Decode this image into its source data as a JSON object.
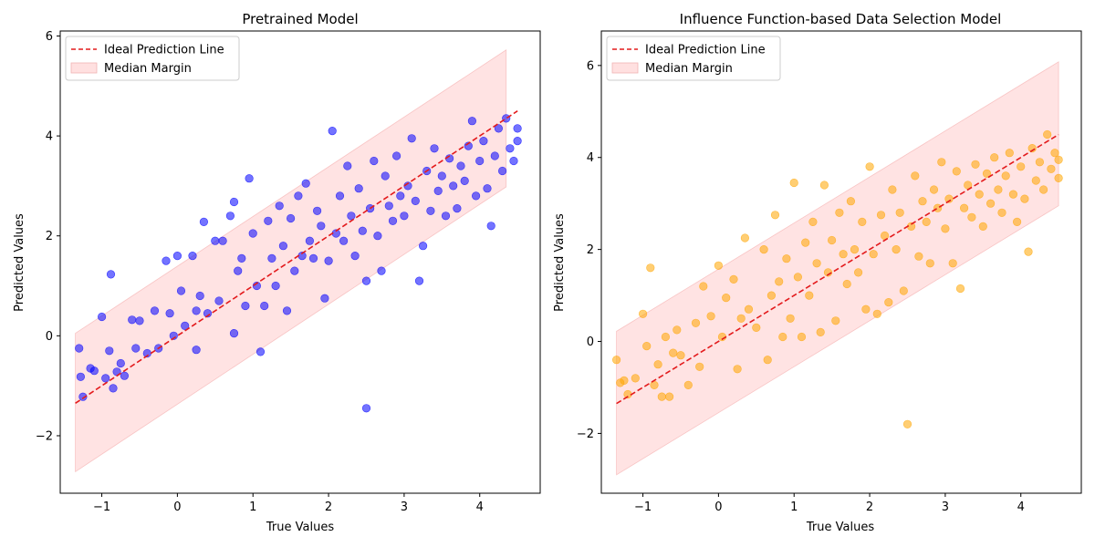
{
  "chart_data": [
    {
      "type": "scatter",
      "title": "Pretrained Model",
      "xlabel": "True Values",
      "ylabel": "Predicted Values",
      "xlim": [
        -1.55,
        4.8
      ],
      "ylim": [
        -3.15,
        6.1
      ],
      "xticks": [
        -1,
        0,
        1,
        2,
        3,
        4
      ],
      "yticks": [
        -2,
        0,
        2,
        4,
        6
      ],
      "tick_labels_x": [
        "−1",
        "0",
        "1",
        "2",
        "3",
        "4"
      ],
      "tick_labels_y": [
        "−2",
        "0",
        "2",
        "4",
        "6"
      ],
      "grid": false,
      "legend_position": "top-left",
      "point_color": "#0000ff",
      "ideal_line": {
        "name": "Ideal Prediction Line",
        "x": [
          -1.35,
          4.5
        ],
        "y": [
          -1.35,
          4.5
        ],
        "color": "#e31a1c",
        "style": "dashed"
      },
      "margin_band": {
        "name": "Median Margin",
        "x": [
          -1.35,
          4.35
        ],
        "lower": [
          -2.72,
          2.98
        ],
        "upper": [
          0.05,
          5.72
        ],
        "color": "#ffcccc"
      },
      "points": [
        [
          -1.3,
          -0.25
        ],
        [
          -1.28,
          -0.82
        ],
        [
          -1.25,
          -1.22
        ],
        [
          -1.15,
          -0.65
        ],
        [
          -1.1,
          -0.7
        ],
        [
          -1.0,
          0.38
        ],
        [
          -0.95,
          -0.85
        ],
        [
          -0.9,
          -0.3
        ],
        [
          -0.88,
          1.23
        ],
        [
          -0.85,
          -1.05
        ],
        [
          -0.8,
          -0.72
        ],
        [
          -0.75,
          -0.55
        ],
        [
          -0.7,
          -0.8
        ],
        [
          -0.6,
          0.32
        ],
        [
          -0.55,
          -0.25
        ],
        [
          -0.5,
          0.3
        ],
        [
          -0.4,
          -0.35
        ],
        [
          -0.3,
          0.5
        ],
        [
          -0.25,
          -0.25
        ],
        [
          -0.15,
          1.5
        ],
        [
          -0.1,
          0.45
        ],
        [
          -0.05,
          0.0
        ],
        [
          0.0,
          1.6
        ],
        [
          0.05,
          0.9
        ],
        [
          0.1,
          0.2
        ],
        [
          0.2,
          1.6
        ],
        [
          0.25,
          -0.28
        ],
        [
          0.25,
          0.5
        ],
        [
          0.3,
          0.8
        ],
        [
          0.35,
          2.28
        ],
        [
          0.4,
          0.45
        ],
        [
          0.5,
          1.9
        ],
        [
          0.55,
          0.7
        ],
        [
          0.6,
          1.9
        ],
        [
          0.7,
          2.4
        ],
        [
          0.75,
          0.05
        ],
        [
          0.75,
          2.68
        ],
        [
          0.8,
          1.3
        ],
        [
          0.85,
          1.55
        ],
        [
          0.9,
          0.6
        ],
        [
          0.95,
          3.15
        ],
        [
          1.0,
          2.05
        ],
        [
          1.05,
          1.0
        ],
        [
          1.1,
          -0.32
        ],
        [
          1.15,
          0.6
        ],
        [
          1.2,
          2.3
        ],
        [
          1.25,
          1.55
        ],
        [
          1.3,
          1.0
        ],
        [
          1.35,
          2.6
        ],
        [
          1.4,
          1.8
        ],
        [
          1.45,
          0.5
        ],
        [
          1.5,
          2.35
        ],
        [
          1.55,
          1.3
        ],
        [
          1.6,
          2.8
        ],
        [
          1.65,
          1.6
        ],
        [
          1.7,
          3.05
        ],
        [
          1.75,
          1.9
        ],
        [
          1.8,
          1.55
        ],
        [
          1.85,
          2.5
        ],
        [
          1.9,
          2.2
        ],
        [
          1.95,
          0.75
        ],
        [
          2.0,
          1.5
        ],
        [
          2.05,
          4.1
        ],
        [
          2.1,
          2.05
        ],
        [
          2.15,
          2.8
        ],
        [
          2.2,
          1.9
        ],
        [
          2.25,
          3.4
        ],
        [
          2.3,
          2.4
        ],
        [
          2.35,
          1.6
        ],
        [
          2.4,
          2.95
        ],
        [
          2.45,
          2.1
        ],
        [
          2.5,
          -1.45
        ],
        [
          2.5,
          1.1
        ],
        [
          2.55,
          2.55
        ],
        [
          2.6,
          3.5
        ],
        [
          2.65,
          2.0
        ],
        [
          2.7,
          1.3
        ],
        [
          2.75,
          3.2
        ],
        [
          2.8,
          2.6
        ],
        [
          2.85,
          2.3
        ],
        [
          2.9,
          3.6
        ],
        [
          2.95,
          2.8
        ],
        [
          3.0,
          2.4
        ],
        [
          3.05,
          3.0
        ],
        [
          3.1,
          3.95
        ],
        [
          3.15,
          2.7
        ],
        [
          3.2,
          1.1
        ],
        [
          3.25,
          1.8
        ],
        [
          3.3,
          3.3
        ],
        [
          3.35,
          2.5
        ],
        [
          3.4,
          3.75
        ],
        [
          3.45,
          2.9
        ],
        [
          3.5,
          3.2
        ],
        [
          3.55,
          2.4
        ],
        [
          3.6,
          3.55
        ],
        [
          3.65,
          3.0
        ],
        [
          3.7,
          2.55
        ],
        [
          3.75,
          3.4
        ],
        [
          3.8,
          3.1
        ],
        [
          3.85,
          3.8
        ],
        [
          3.9,
          4.3
        ],
        [
          3.95,
          2.8
        ],
        [
          4.0,
          3.5
        ],
        [
          4.05,
          3.9
        ],
        [
          4.1,
          2.95
        ],
        [
          4.15,
          2.2
        ],
        [
          4.2,
          3.6
        ],
        [
          4.25,
          4.15
        ],
        [
          4.3,
          3.3
        ],
        [
          4.35,
          4.35
        ],
        [
          4.4,
          3.75
        ],
        [
          4.45,
          3.5
        ],
        [
          4.5,
          3.9
        ],
        [
          4.5,
          4.15
        ]
      ]
    },
    {
      "type": "scatter",
      "title": "Influence Function-based Data Selection Model",
      "xlabel": "True Values",
      "ylabel": "Predicted Values",
      "xlim": [
        -1.55,
        4.8
      ],
      "ylim": [
        -3.3,
        6.75
      ],
      "xticks": [
        -1,
        0,
        1,
        2,
        3,
        4
      ],
      "yticks": [
        -2,
        0,
        2,
        4,
        6
      ],
      "tick_labels_x": [
        "−1",
        "0",
        "1",
        "2",
        "3",
        "4"
      ],
      "tick_labels_y": [
        "−2",
        "0",
        "2",
        "4",
        "6"
      ],
      "grid": false,
      "legend_position": "top-left",
      "point_color": "#ffa500",
      "ideal_line": {
        "name": "Ideal Prediction Line",
        "x": [
          -1.35,
          4.5
        ],
        "y": [
          -1.35,
          4.5
        ],
        "color": "#e31a1c",
        "style": "dashed"
      },
      "margin_band": {
        "name": "Median Margin",
        "x": [
          -1.35,
          4.5
        ],
        "lower": [
          -2.9,
          2.95
        ],
        "upper": [
          0.22,
          6.08
        ],
        "color": "#ffcccc"
      },
      "points": [
        [
          -1.35,
          -0.4
        ],
        [
          -1.3,
          -0.9
        ],
        [
          -1.25,
          -0.85
        ],
        [
          -1.2,
          -1.15
        ],
        [
          -1.1,
          -0.8
        ],
        [
          -1.0,
          0.6
        ],
        [
          -0.95,
          -0.1
        ],
        [
          -0.9,
          1.6
        ],
        [
          -0.85,
          -0.95
        ],
        [
          -0.8,
          -0.5
        ],
        [
          -0.75,
          -1.2
        ],
        [
          -0.7,
          0.1
        ],
        [
          -0.65,
          -1.2
        ],
        [
          -0.6,
          -0.25
        ],
        [
          -0.55,
          0.25
        ],
        [
          -0.5,
          -0.3
        ],
        [
          -0.4,
          -0.95
        ],
        [
          -0.3,
          0.4
        ],
        [
          -0.25,
          -0.55
        ],
        [
          -0.2,
          1.2
        ],
        [
          -0.1,
          0.55
        ],
        [
          0.0,
          1.65
        ],
        [
          0.05,
          0.1
        ],
        [
          0.1,
          0.95
        ],
        [
          0.2,
          1.35
        ],
        [
          0.25,
          -0.6
        ],
        [
          0.3,
          0.5
        ],
        [
          0.35,
          2.25
        ],
        [
          0.4,
          0.7
        ],
        [
          0.5,
          0.3
        ],
        [
          0.6,
          2.0
        ],
        [
          0.65,
          -0.4
        ],
        [
          0.7,
          1.0
        ],
        [
          0.75,
          2.75
        ],
        [
          0.8,
          1.3
        ],
        [
          0.85,
          0.1
        ],
        [
          0.9,
          1.8
        ],
        [
          0.95,
          0.5
        ],
        [
          1.0,
          3.45
        ],
        [
          1.05,
          1.4
        ],
        [
          1.1,
          0.1
        ],
        [
          1.15,
          2.15
        ],
        [
          1.2,
          1.0
        ],
        [
          1.25,
          2.6
        ],
        [
          1.3,
          1.7
        ],
        [
          1.35,
          0.2
        ],
        [
          1.4,
          3.4
        ],
        [
          1.45,
          1.5
        ],
        [
          1.5,
          2.2
        ],
        [
          1.55,
          0.45
        ],
        [
          1.6,
          2.8
        ],
        [
          1.65,
          1.9
        ],
        [
          1.7,
          1.25
        ],
        [
          1.75,
          3.05
        ],
        [
          1.8,
          2.0
        ],
        [
          1.85,
          1.5
        ],
        [
          1.9,
          2.6
        ],
        [
          1.95,
          0.7
        ],
        [
          2.0,
          3.8
        ],
        [
          2.05,
          1.9
        ],
        [
          2.1,
          0.6
        ],
        [
          2.15,
          2.75
        ],
        [
          2.2,
          2.3
        ],
        [
          2.25,
          0.85
        ],
        [
          2.3,
          3.3
        ],
        [
          2.35,
          2.0
        ],
        [
          2.4,
          2.8
        ],
        [
          2.45,
          1.1
        ],
        [
          2.5,
          -1.8
        ],
        [
          2.55,
          2.5
        ],
        [
          2.6,
          3.6
        ],
        [
          2.65,
          1.85
        ],
        [
          2.7,
          3.05
        ],
        [
          2.75,
          2.6
        ],
        [
          2.8,
          1.7
        ],
        [
          2.85,
          3.3
        ],
        [
          2.9,
          2.9
        ],
        [
          2.95,
          3.9
        ],
        [
          3.0,
          2.45
        ],
        [
          3.05,
          3.1
        ],
        [
          3.1,
          1.7
        ],
        [
          3.15,
          3.7
        ],
        [
          3.2,
          1.15
        ],
        [
          3.25,
          2.9
        ],
        [
          3.3,
          3.4
        ],
        [
          3.35,
          2.7
        ],
        [
          3.4,
          3.85
        ],
        [
          3.45,
          3.2
        ],
        [
          3.5,
          2.5
        ],
        [
          3.55,
          3.65
        ],
        [
          3.6,
          3.0
        ],
        [
          3.65,
          4.0
        ],
        [
          3.7,
          3.3
        ],
        [
          3.75,
          2.8
        ],
        [
          3.8,
          3.6
        ],
        [
          3.85,
          4.1
        ],
        [
          3.9,
          3.2
        ],
        [
          3.95,
          2.6
        ],
        [
          4.0,
          3.8
        ],
        [
          4.05,
          3.1
        ],
        [
          4.1,
          1.95
        ],
        [
          4.15,
          4.2
        ],
        [
          4.2,
          3.5
        ],
        [
          4.25,
          3.9
        ],
        [
          4.3,
          3.3
        ],
        [
          4.35,
          4.5
        ],
        [
          4.4,
          3.75
        ],
        [
          4.45,
          4.1
        ],
        [
          4.5,
          3.55
        ],
        [
          4.5,
          3.95
        ]
      ]
    }
  ]
}
